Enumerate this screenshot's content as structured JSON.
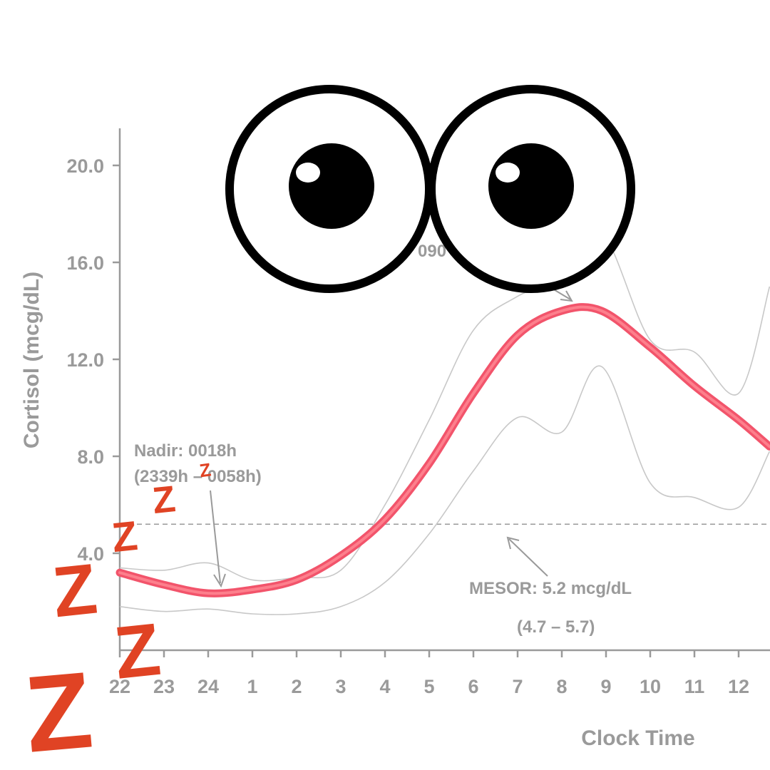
{
  "chart_data": {
    "type": "line",
    "xlabel": "Clock Time",
    "ylabel": "Cortisol (mcg/dL)",
    "x_tick_labels": [
      "22",
      "23",
      "24",
      "1",
      "2",
      "3",
      "4",
      "5",
      "6",
      "7",
      "8",
      "9",
      "10",
      "11",
      "12"
    ],
    "y_ticks": [
      4.0,
      8.0,
      12.0,
      16.0,
      20.0
    ],
    "y_tick_labels": [
      "4.0",
      "8.0",
      "12.0",
      "16.0",
      "20.0"
    ],
    "ylim": [
      0,
      21.6
    ],
    "grid": false,
    "mesor_value": 5.2,
    "x_hours": [
      22,
      23,
      24,
      25,
      26,
      27,
      28,
      29,
      30,
      31,
      32,
      32.9,
      34,
      35,
      36,
      36.7
    ],
    "series": [
      {
        "role": "mean",
        "values": [
          3.2,
          2.7,
          2.35,
          2.5,
          2.9,
          3.9,
          5.4,
          7.7,
          10.6,
          13.0,
          14.0,
          14.0,
          12.5,
          10.9,
          9.5,
          8.4
        ]
      },
      {
        "role": "upper-band",
        "values": [
          3.4,
          3.3,
          3.6,
          2.9,
          3.0,
          3.3,
          6.0,
          9.5,
          13.2,
          14.6,
          15.4,
          17.2,
          12.8,
          12.3,
          10.6,
          15.0
        ]
      },
      {
        "role": "lower-band",
        "values": [
          1.8,
          1.6,
          1.7,
          1.5,
          1.5,
          1.8,
          2.8,
          4.8,
          7.4,
          9.6,
          9.0,
          11.7,
          6.9,
          6.3,
          5.9,
          8.2
        ]
      }
    ],
    "annotations": [
      {
        "line1": "Nadir: 0018h",
        "line2": "(2339h – 0058h)"
      },
      {
        "line1": "MESOR: 5.2 mcg/dL",
        "line2": "(4.7 –  5.7)"
      },
      {
        "label": "090"
      }
    ],
    "colors": {
      "mean_line": "#f2546b",
      "mean_highlight": "#ff8a95",
      "band_line": "#c8c8c8",
      "axis": "#9a9a9a",
      "mesor_line": "#9a9a9a"
    }
  },
  "overlay": {
    "eyes_icon": "cartoon-googly-eyes",
    "sleep_icon": "sleeping-z-letters",
    "z_letter": "Z",
    "z_color": "#e04324"
  }
}
